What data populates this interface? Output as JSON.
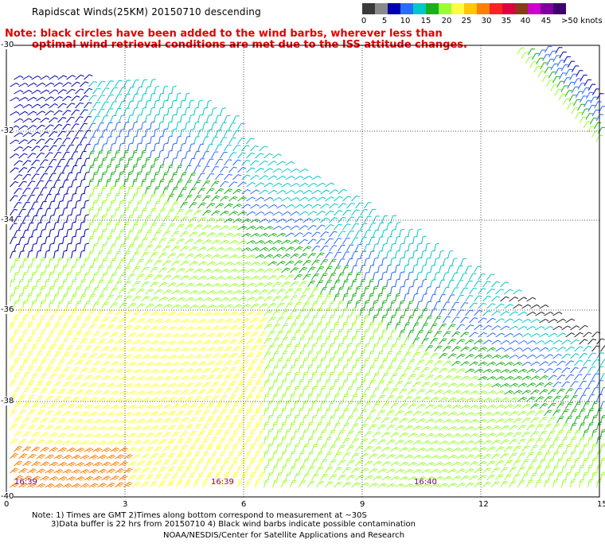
{
  "header": {
    "title": "Rapidscat Winds(25KM) 20150710 descending",
    "note_line1": "Note: black circles have been added to the wind barbs, wherever less than",
    "note_line2": "optimal wind retrieval conditions are met due to the ISS attitude changes."
  },
  "legend": {
    "colors": [
      "#3a3a3a",
      "#8a8a8a",
      "#0000b0",
      "#2a6aff",
      "#00c8c8",
      "#1ab01a",
      "#9aff30",
      "#ffff40",
      "#ffc800",
      "#ff8000",
      "#ff2020",
      "#e00040",
      "#8b3a1a",
      "#d000d0",
      "#8000a0",
      "#40006a"
    ],
    "labels": [
      "0",
      "5",
      "10",
      "15",
      "20",
      "25",
      "30",
      "35",
      "40",
      "45",
      ">50 knots"
    ]
  },
  "axes": {
    "x_ticks": [
      "0",
      "3",
      "6",
      "9",
      "12",
      "15"
    ],
    "y_ticks": [
      "-30",
      "-32",
      "-34",
      "-36",
      "-38",
      "-40"
    ]
  },
  "times": [
    "16:39",
    "16:39",
    "16:40"
  ],
  "footer": {
    "line1": "Note: 1) Times are GMT 2)Times along bottom correspond to measurement at ~30S",
    "line2": "3)Data buffer is 22 hrs from 20150710 4) Black wind barbs indicate possible contamination",
    "credit": "NOAA/NESDIS/Center for Satellite Applications and Research"
  }
}
